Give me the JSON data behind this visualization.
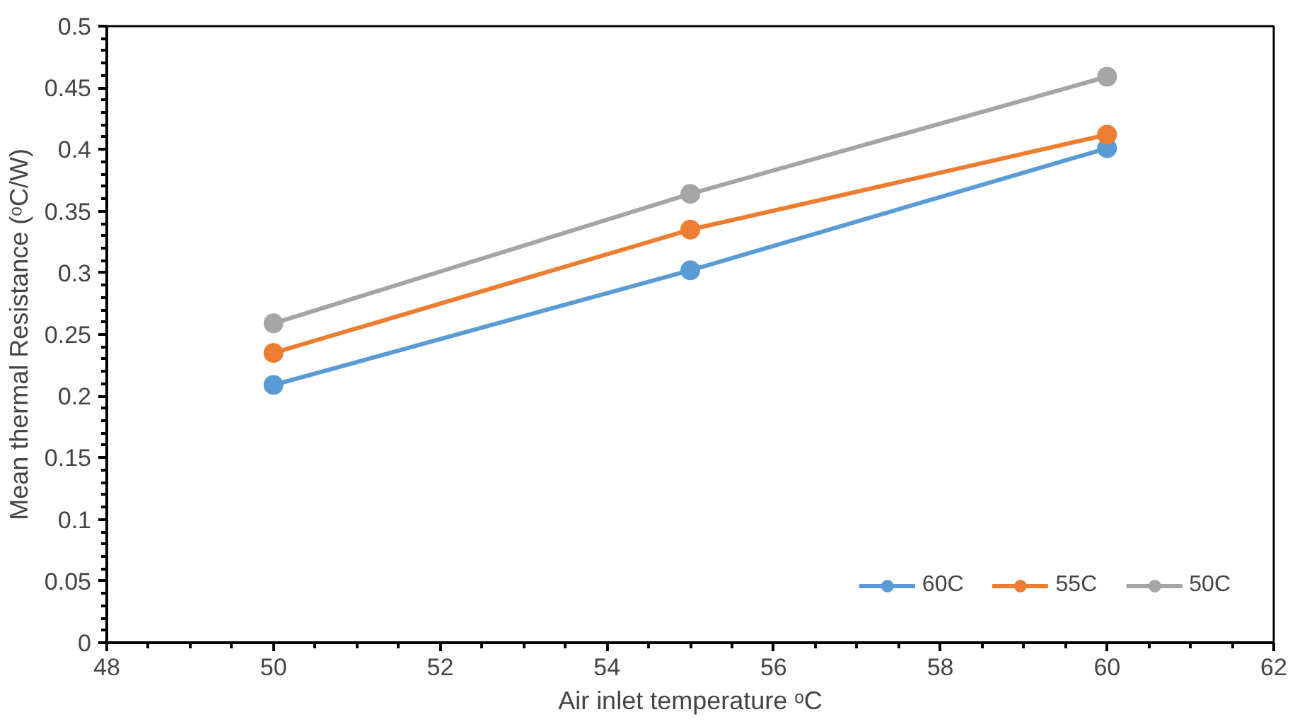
{
  "chart_data": {
    "type": "line",
    "xlabel": "Air inlet temperature ᵒC",
    "ylabel": "Mean thermal Resistance (ᵒC/W)",
    "x": [
      50,
      55,
      60
    ],
    "series": [
      {
        "name": "60C",
        "color": "#5b9bd5",
        "values": [
          0.209,
          0.302,
          0.401
        ]
      },
      {
        "name": "55C",
        "color": "#ed7d31",
        "values": [
          0.235,
          0.335,
          0.412
        ]
      },
      {
        "name": "50C",
        "color": "#a5a5a5",
        "values": [
          0.259,
          0.364,
          0.459
        ]
      }
    ],
    "xlim": [
      48,
      62
    ],
    "xticks": [
      48,
      50,
      52,
      54,
      56,
      58,
      60,
      62
    ],
    "ylim": [
      0,
      0.5
    ],
    "yticks": [
      0,
      0.05,
      0.1,
      0.15,
      0.2,
      0.25,
      0.3,
      0.35,
      0.4,
      0.45,
      0.5
    ],
    "grid": false,
    "legend": "bottom right",
    "marker": "circle",
    "line_style": "solid"
  }
}
